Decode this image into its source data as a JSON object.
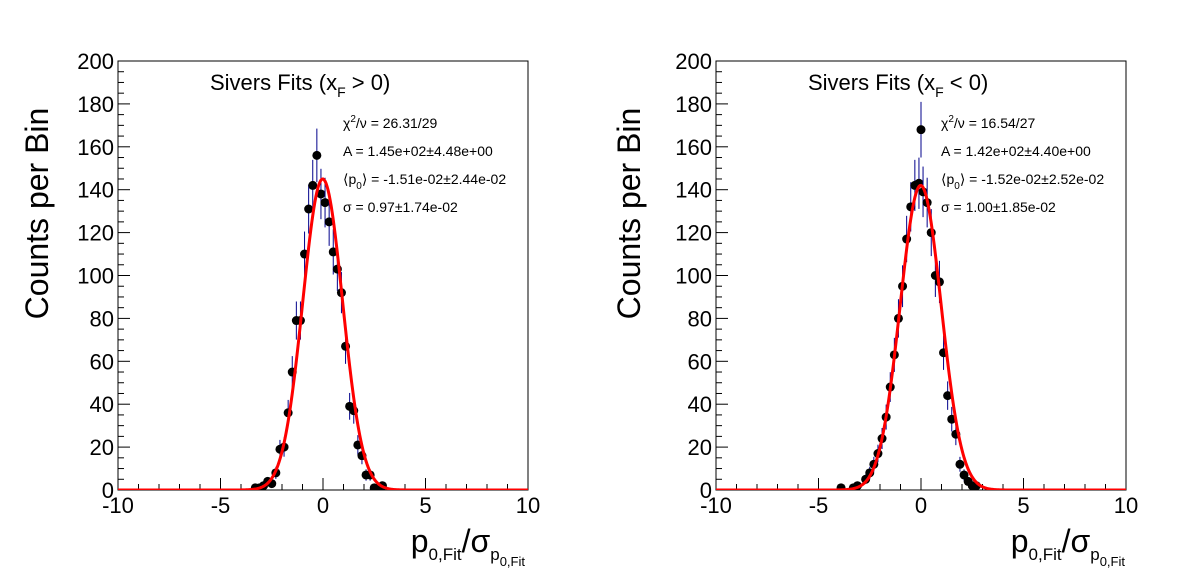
{
  "chart_data": [
    {
      "type": "scatter",
      "panel": "left",
      "title": {
        "main": "Sivers Fits (x",
        "sub": "F",
        "rest": " > 0)"
      },
      "xlabel": {
        "p": "p",
        "p_sub": "0,Fit",
        "slash": "/",
        "sigma": "σ",
        "s_sub": "p",
        "s_subsub": "0,Fit"
      },
      "ylabel": "Counts per Bin",
      "xlim": [
        -10,
        10
      ],
      "ylim": [
        0,
        200
      ],
      "xticks": [
        "-10",
        "-5",
        "0",
        "5",
        "10"
      ],
      "yticks": [
        "0",
        "20",
        "40",
        "60",
        "80",
        "100",
        "120",
        "140",
        "160",
        "180",
        "200"
      ],
      "fit": {
        "A": 145,
        "mean": -0.0151,
        "sigma": 0.97
      },
      "stats": {
        "chi2": {
          "pre": "χ",
          "sup": "2",
          "post": "/ν = 26.31/29"
        },
        "A": "A = 1.45e+02±4.48e+00",
        "p0": {
          "pre": "⟨p",
          "sub": "0",
          "post": "⟩ = -1.51e-02±2.44e-02"
        },
        "sigma": "σ = 0.97±1.74e-02"
      },
      "points": [
        {
          "x": -3.3,
          "y": 1
        },
        {
          "x": -3.1,
          "y": 1
        },
        {
          "x": -2.9,
          "y": 2
        },
        {
          "x": -2.7,
          "y": 4
        },
        {
          "x": -2.5,
          "y": 3
        },
        {
          "x": -2.3,
          "y": 8
        },
        {
          "x": -2.1,
          "y": 19
        },
        {
          "x": -1.9,
          "y": 20
        },
        {
          "x": -1.7,
          "y": 36
        },
        {
          "x": -1.5,
          "y": 55
        },
        {
          "x": -1.3,
          "y": 79
        },
        {
          "x": -1.1,
          "y": 79
        },
        {
          "x": -0.9,
          "y": 110
        },
        {
          "x": -0.7,
          "y": 131
        },
        {
          "x": -0.5,
          "y": 142
        },
        {
          "x": -0.3,
          "y": 156
        },
        {
          "x": -0.1,
          "y": 138
        },
        {
          "x": 0.1,
          "y": 134
        },
        {
          "x": 0.3,
          "y": 125
        },
        {
          "x": 0.5,
          "y": 111
        },
        {
          "x": 0.7,
          "y": 103
        },
        {
          "x": 0.9,
          "y": 92
        },
        {
          "x": 1.1,
          "y": 67
        },
        {
          "x": 1.3,
          "y": 39
        },
        {
          "x": 1.5,
          "y": 37
        },
        {
          "x": 1.7,
          "y": 21
        },
        {
          "x": 1.9,
          "y": 16
        },
        {
          "x": 2.1,
          "y": 7
        },
        {
          "x": 2.3,
          "y": 7
        },
        {
          "x": 2.5,
          "y": 1
        },
        {
          "x": 2.7,
          "y": 1
        },
        {
          "x": 2.9,
          "y": 2
        }
      ]
    },
    {
      "type": "scatter",
      "panel": "right",
      "title": {
        "main": "Sivers Fits (x",
        "sub": "F",
        "rest": " < 0)"
      },
      "xlabel": {
        "p": "p",
        "p_sub": "0,Fit",
        "slash": "/",
        "sigma": "σ",
        "s_sub": "p",
        "s_subsub": "0,Fit"
      },
      "ylabel": "Counts per Bin",
      "xlim": [
        -10,
        10
      ],
      "ylim": [
        0,
        200
      ],
      "xticks": [
        "-10",
        "-5",
        "0",
        "5",
        "10"
      ],
      "yticks": [
        "0",
        "20",
        "40",
        "60",
        "80",
        "100",
        "120",
        "140",
        "160",
        "180",
        "200"
      ],
      "fit": {
        "A": 142,
        "mean": -0.0152,
        "sigma": 1.0
      },
      "stats": {
        "chi2": {
          "pre": "χ",
          "sup": "2",
          "post": "/ν = 16.54/27"
        },
        "A": "A = 1.42e+02±4.40e+00",
        "p0": {
          "pre": "⟨p",
          "sub": "0",
          "post": "⟩ = -1.52e-02±2.52e-02"
        },
        "sigma": "σ = 1.00±1.85e-02"
      },
      "points": [
        {
          "x": -3.9,
          "y": 1
        },
        {
          "x": -3.3,
          "y": 1
        },
        {
          "x": -3.1,
          "y": 2
        },
        {
          "x": -2.7,
          "y": 5
        },
        {
          "x": -2.5,
          "y": 8
        },
        {
          "x": -2.3,
          "y": 12
        },
        {
          "x": -2.1,
          "y": 17
        },
        {
          "x": -1.9,
          "y": 24
        },
        {
          "x": -1.7,
          "y": 34
        },
        {
          "x": -1.5,
          "y": 48
        },
        {
          "x": -1.3,
          "y": 63
        },
        {
          "x": -1.1,
          "y": 80
        },
        {
          "x": -0.9,
          "y": 95
        },
        {
          "x": -0.7,
          "y": 117
        },
        {
          "x": -0.5,
          "y": 132
        },
        {
          "x": -0.3,
          "y": 142
        },
        {
          "x": -0.1,
          "y": 143
        },
        {
          "x": 0.1,
          "y": 139
        },
        {
          "x": 0.3,
          "y": 134
        },
        {
          "x": 0.5,
          "y": 120
        },
        {
          "x": 0.7,
          "y": 100
        },
        {
          "x": 0.9,
          "y": 97
        },
        {
          "x": 1.1,
          "y": 64
        },
        {
          "x": 1.3,
          "y": 44
        },
        {
          "x": 1.5,
          "y": 33
        },
        {
          "x": 1.7,
          "y": 26
        },
        {
          "x": 1.9,
          "y": 12
        },
        {
          "x": 2.1,
          "y": 7
        },
        {
          "x": 2.3,
          "y": 4
        },
        {
          "x": 2.5,
          "y": 2
        },
        {
          "x": 2.7,
          "y": 2
        },
        {
          "x": 0.0,
          "y": 168
        }
      ]
    }
  ],
  "colors": {
    "fit": "#ff0000",
    "points": "#000000",
    "errorbar": "#00008b",
    "axis": "#000000"
  }
}
